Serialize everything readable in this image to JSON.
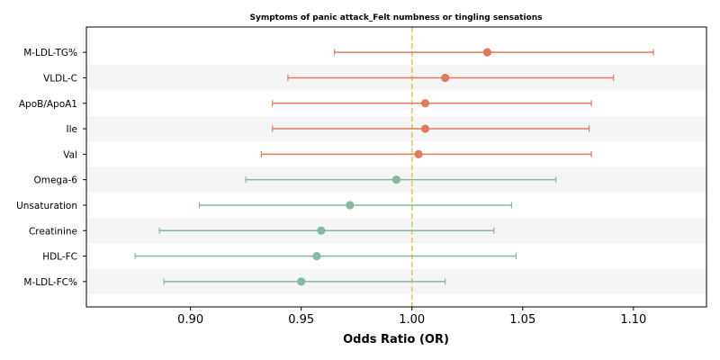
{
  "chart_data": {
    "type": "forest",
    "title": "Symptoms of panic attack_Felt numbness or tingling sensations",
    "xlabel": "Odds Ratio (OR)",
    "ylabel": "",
    "xlim": [
      0.853,
      1.133
    ],
    "xticks": [
      0.9,
      0.95,
      1.0,
      1.05,
      1.1
    ],
    "xtick_labels": [
      "0.90",
      "0.95",
      "1.00",
      "1.05",
      "1.10"
    ],
    "reference_line": 1.0,
    "grid": false,
    "row_striping": true,
    "rows": [
      {
        "label": "M-LDL-TG%",
        "or": 1.034,
        "ci_low": 0.965,
        "ci_high": 1.109,
        "direction": "positive"
      },
      {
        "label": "VLDL-C",
        "or": 1.015,
        "ci_low": 0.944,
        "ci_high": 1.091,
        "direction": "positive"
      },
      {
        "label": "ApoB/ApoA1",
        "or": 1.006,
        "ci_low": 0.937,
        "ci_high": 1.081,
        "direction": "positive"
      },
      {
        "label": "Ile",
        "or": 1.006,
        "ci_low": 0.937,
        "ci_high": 1.08,
        "direction": "positive"
      },
      {
        "label": "Val",
        "or": 1.003,
        "ci_low": 0.932,
        "ci_high": 1.081,
        "direction": "positive"
      },
      {
        "label": "Omega-6",
        "or": 0.993,
        "ci_low": 0.925,
        "ci_high": 1.065,
        "direction": "negative"
      },
      {
        "label": "Unsaturation",
        "or": 0.972,
        "ci_low": 0.904,
        "ci_high": 1.045,
        "direction": "negative"
      },
      {
        "label": "Creatinine",
        "or": 0.959,
        "ci_low": 0.886,
        "ci_high": 1.037,
        "direction": "negative"
      },
      {
        "label": "HDL-FC",
        "or": 0.957,
        "ci_low": 0.875,
        "ci_high": 1.047,
        "direction": "negative"
      },
      {
        "label": "M-LDL-FC%",
        "or": 0.95,
        "ci_low": 0.888,
        "ci_high": 1.015,
        "direction": "negative"
      }
    ],
    "colors": {
      "positive": "#e07b5f",
      "negative": "#86b89e",
      "reference_line": "#e8c26a",
      "stripe": "#f5f5f5",
      "axis": "#000000"
    }
  }
}
